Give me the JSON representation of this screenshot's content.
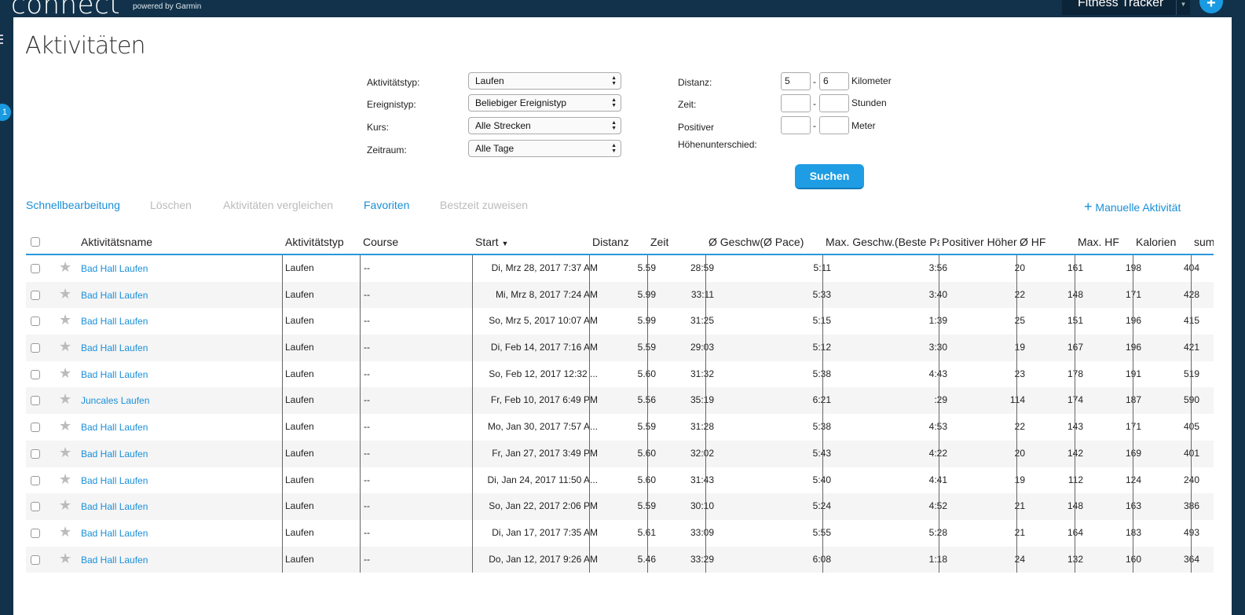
{
  "topbar": {
    "logo": "connect",
    "logo_sub": "powered by Garmin",
    "device": "Fitness Tracker",
    "plus": "+"
  },
  "sidebar": {
    "badge": "1"
  },
  "page": {
    "title": "Aktivitäten"
  },
  "filters": {
    "activity_type_label": "Aktivitätstyp:",
    "activity_type_value": "Laufen",
    "event_type_label": "Ereignistyp:",
    "event_type_value": "Beliebiger Ereignistyp",
    "course_label": "Kurs:",
    "course_value": "Alle Strecken",
    "period_label": "Zeitraum:",
    "period_value": "Alle Tage",
    "distance_label": "Distanz:",
    "distance_from": "5",
    "distance_to": "6",
    "distance_unit": "Kilometer",
    "time_label": "Zeit:",
    "time_from": "",
    "time_to": "",
    "time_unit": "Stunden",
    "elevation_label_1": "Positiver",
    "elevation_label_2": "Höhenunterschied:",
    "elevation_from": "",
    "elevation_to": "",
    "elevation_unit": "Meter",
    "separator": "-",
    "search_button": "Suchen"
  },
  "actions": {
    "quick_edit": "Schnellbearbeitung",
    "delete": "Löschen",
    "compare": "Aktivitäten vergleichen",
    "favorites": "Favoriten",
    "assign_best_time": "Bestzeit zuweisen",
    "manual_activity": "Manuelle Aktivität"
  },
  "table": {
    "columns": {
      "name": "Aktivitätsname",
      "type": "Aktivitätstyp",
      "course": "Course",
      "start": "Start",
      "distance": "Distanz",
      "time": "Zeit",
      "avg_speed": "Ø Geschw(Ø Pace)",
      "max_speed": "Max. Geschw.(Beste Pa",
      "elev_gain": "Positiver Höher",
      "avg_hr": "Ø HF",
      "max_hr": "Max. HF",
      "calories": "Kalorien",
      "sum": "sum"
    },
    "rows": [
      {
        "name": "Bad Hall Laufen",
        "type": "Laufen",
        "course": "--",
        "start": "Di, Mrz 28, 2017 7:37 AM",
        "distance": "5.59",
        "time": "28:59",
        "avg_speed": "5:11",
        "max_speed": "3:56",
        "elev_gain": "20",
        "avg_hr": "161",
        "max_hr": "198",
        "calories": "404"
      },
      {
        "name": "Bad Hall Laufen",
        "type": "Laufen",
        "course": "--",
        "start": "Mi, Mrz 8, 2017 7:24 AM",
        "distance": "5.99",
        "time": "33:11",
        "avg_speed": "5:33",
        "max_speed": "3:40",
        "elev_gain": "22",
        "avg_hr": "148",
        "max_hr": "171",
        "calories": "428"
      },
      {
        "name": "Bad Hall Laufen",
        "type": "Laufen",
        "course": "--",
        "start": "So, Mrz 5, 2017 10:07 AM",
        "distance": "5.99",
        "time": "31:25",
        "avg_speed": "5:15",
        "max_speed": "1:39",
        "elev_gain": "25",
        "avg_hr": "151",
        "max_hr": "196",
        "calories": "415"
      },
      {
        "name": "Bad Hall Laufen",
        "type": "Laufen",
        "course": "--",
        "start": "Di, Feb 14, 2017 7:16 AM",
        "distance": "5.59",
        "time": "29:03",
        "avg_speed": "5:12",
        "max_speed": "3:30",
        "elev_gain": "19",
        "avg_hr": "167",
        "max_hr": "196",
        "calories": "421"
      },
      {
        "name": "Bad Hall Laufen",
        "type": "Laufen",
        "course": "--",
        "start": "So, Feb 12, 2017 12:32 ...",
        "distance": "5.60",
        "time": "31:32",
        "avg_speed": "5:38",
        "max_speed": "4:43",
        "elev_gain": "23",
        "avg_hr": "178",
        "max_hr": "191",
        "calories": "519"
      },
      {
        "name": "Juncales Laufen",
        "type": "Laufen",
        "course": "--",
        "start": "Fr, Feb 10, 2017 6:49 PM",
        "distance": "5.56",
        "time": "35:19",
        "avg_speed": "6:21",
        "max_speed": ":29",
        "elev_gain": "114",
        "avg_hr": "174",
        "max_hr": "187",
        "calories": "590"
      },
      {
        "name": "Bad Hall Laufen",
        "type": "Laufen",
        "course": "--",
        "start": "Mo, Jan 30, 2017 7:57 A...",
        "distance": "5.59",
        "time": "31:28",
        "avg_speed": "5:38",
        "max_speed": "4:53",
        "elev_gain": "22",
        "avg_hr": "143",
        "max_hr": "171",
        "calories": "405"
      },
      {
        "name": "Bad Hall Laufen",
        "type": "Laufen",
        "course": "--",
        "start": "Fr, Jan 27, 2017 3:49 PM",
        "distance": "5.60",
        "time": "32:02",
        "avg_speed": "5:43",
        "max_speed": "4:22",
        "elev_gain": "20",
        "avg_hr": "142",
        "max_hr": "169",
        "calories": "401"
      },
      {
        "name": "Bad Hall Laufen",
        "type": "Laufen",
        "course": "--",
        "start": "Di, Jan 24, 2017 11:50 A...",
        "distance": "5.60",
        "time": "31:43",
        "avg_speed": "5:40",
        "max_speed": "4:41",
        "elev_gain": "19",
        "avg_hr": "112",
        "max_hr": "124",
        "calories": "240"
      },
      {
        "name": "Bad Hall Laufen",
        "type": "Laufen",
        "course": "--",
        "start": "So, Jan 22, 2017 2:06 PM",
        "distance": "5.59",
        "time": "30:10",
        "avg_speed": "5:24",
        "max_speed": "4:52",
        "elev_gain": "21",
        "avg_hr": "148",
        "max_hr": "163",
        "calories": "386"
      },
      {
        "name": "Bad Hall Laufen",
        "type": "Laufen",
        "course": "--",
        "start": "Di, Jan 17, 2017 7:35 AM",
        "distance": "5.61",
        "time": "33:09",
        "avg_speed": "5:55",
        "max_speed": "5:28",
        "elev_gain": "21",
        "avg_hr": "164",
        "max_hr": "183",
        "calories": "493"
      },
      {
        "name": "Bad Hall Laufen",
        "type": "Laufen",
        "course": "--",
        "start": "Do, Jan 12, 2017 9:26 AM",
        "distance": "5.46",
        "time": "33:29",
        "avg_speed": "6:08",
        "max_speed": "1:18",
        "elev_gain": "24",
        "avg_hr": "132",
        "max_hr": "160",
        "calories": "364"
      }
    ]
  },
  "colors": {
    "accent": "#1a8fd9",
    "header_bg": "#11324a",
    "button": "#1e9de4"
  }
}
